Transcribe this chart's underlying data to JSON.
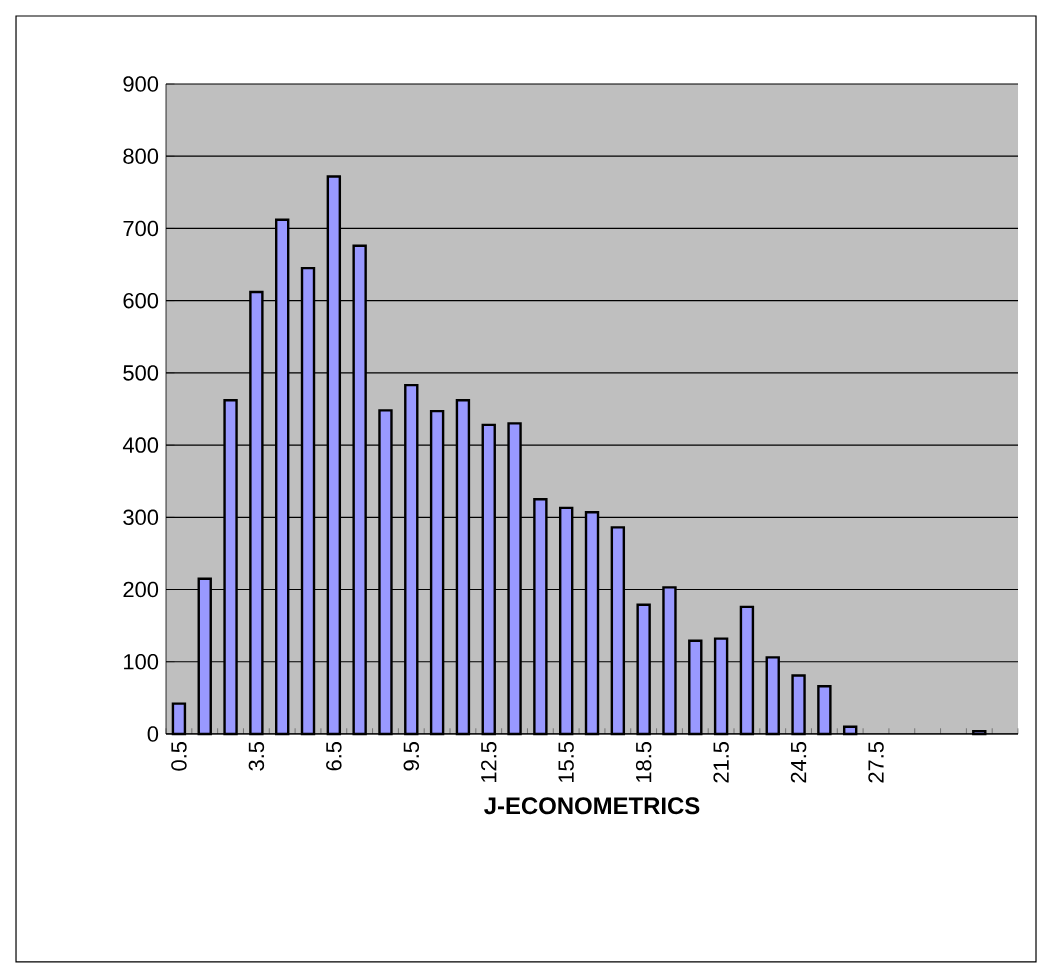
{
  "chart_data": {
    "type": "bar",
    "xlabel": "J-ECONOMETRICS",
    "categories": [
      "0.5",
      null,
      null,
      "3.5",
      null,
      null,
      "6.5",
      null,
      null,
      "9.5",
      null,
      null,
      "12.5",
      null,
      null,
      "15.5",
      null,
      null,
      "18.5",
      null,
      null,
      "21.5",
      null,
      null,
      "24.5",
      null,
      null,
      "27.5",
      null,
      null,
      null,
      null,
      null
    ],
    "values": [
      42,
      215,
      462,
      612,
      712,
      645,
      772,
      676,
      448,
      483,
      447,
      462,
      428,
      430,
      325,
      313,
      307,
      286,
      179,
      203,
      129,
      132,
      176,
      106,
      81,
      66,
      10,
      null,
      null,
      null,
      null,
      4,
      null
    ],
    "color": "#9999ff",
    "ylim": [
      0,
      900
    ],
    "yticks": [
      0,
      100,
      200,
      300,
      400,
      500,
      600,
      700,
      800,
      900
    ],
    "grid": "y"
  }
}
